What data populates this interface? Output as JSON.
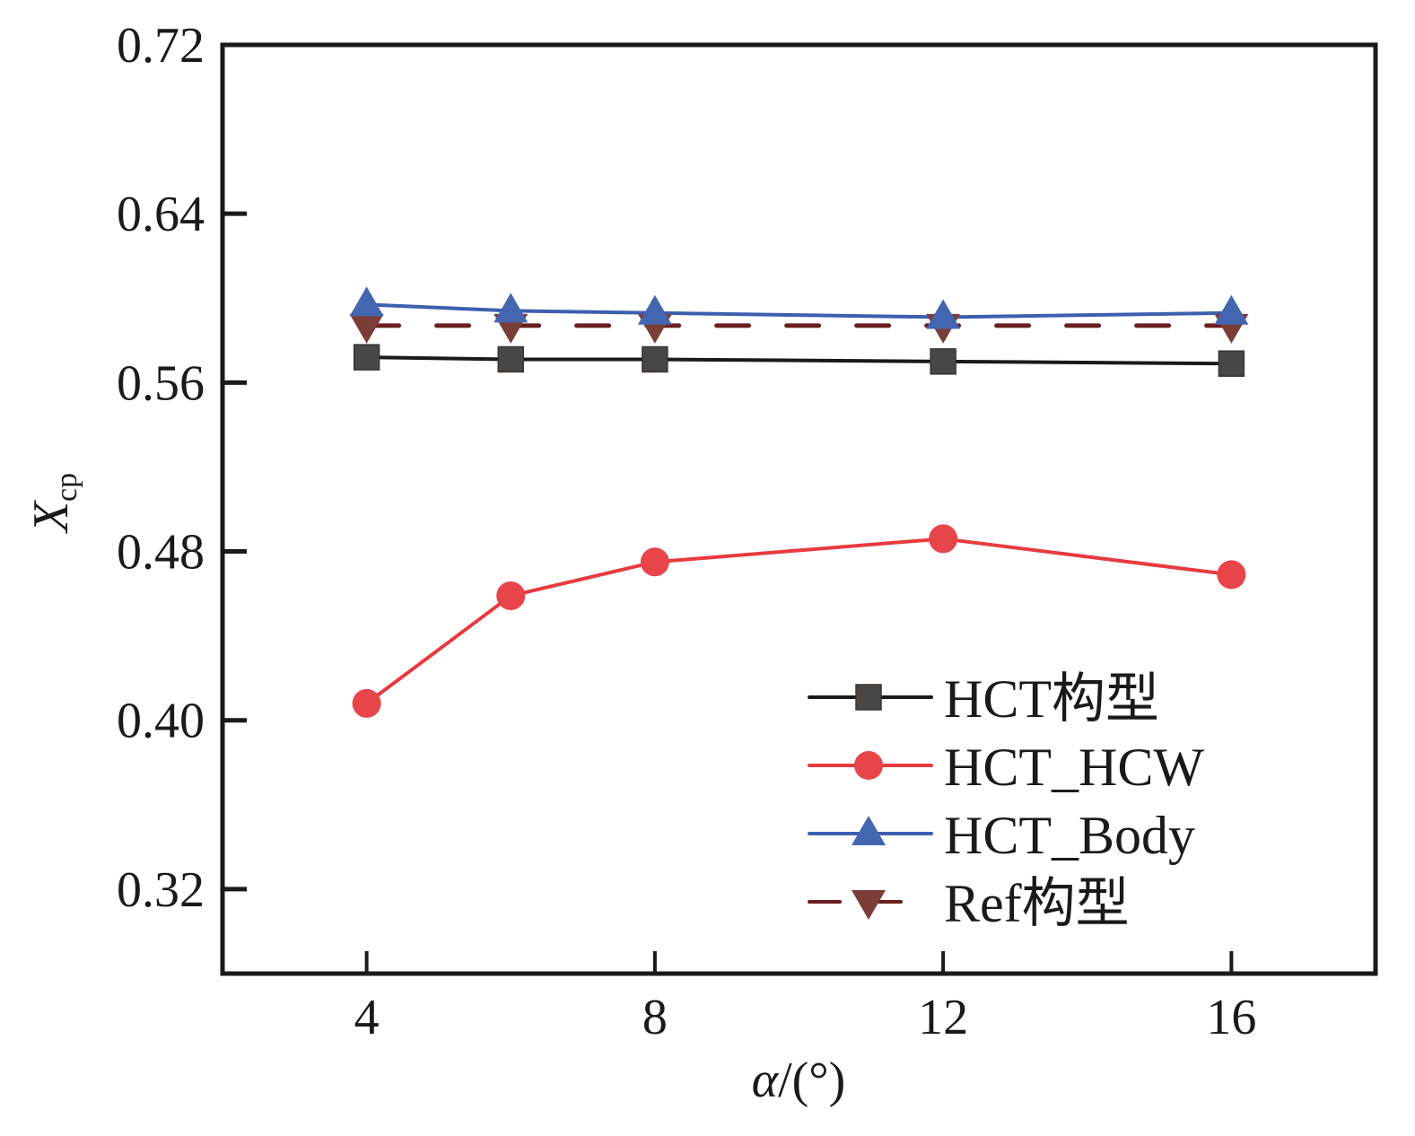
{
  "chart_data": {
    "type": "line",
    "title": "",
    "xlabel_italic": "α",
    "xlabel_rest": "/(°)",
    "xlabel": "α/(°)",
    "ylabel": "X",
    "ylabel_sub": "cp",
    "xlim": [
      2,
      18
    ],
    "ylim": [
      0.28,
      0.72
    ],
    "xticks": [
      4,
      8,
      12,
      16
    ],
    "xtick_labels": [
      "4",
      "8",
      "12",
      "16"
    ],
    "yticks": [
      0.32,
      0.4,
      0.48,
      0.56,
      0.64,
      0.72
    ],
    "ytick_labels": [
      "0.32",
      "0.40",
      "0.48",
      "0.56",
      "0.64",
      "0.72"
    ],
    "grid": false,
    "legend_position": "bottom-right",
    "x": [
      4,
      6,
      8,
      12,
      16
    ],
    "series": [
      {
        "name": "HCT构型",
        "marker": "square",
        "line": "solid",
        "color": "#1a1a1a",
        "marker_color": "#4a4644",
        "values": [
          0.572,
          0.571,
          0.571,
          0.57,
          0.569
        ]
      },
      {
        "name": "HCT_HCW",
        "marker": "circle",
        "line": "solid",
        "color": "#e83a3f",
        "marker_color": "#e8454a",
        "values": [
          0.408,
          0.459,
          0.475,
          0.486,
          0.469
        ]
      },
      {
        "name": "HCT_Body",
        "marker": "triangle-up",
        "line": "solid",
        "color": "#3d5fb0",
        "marker_color": "#4466b0",
        "values": [
          0.597,
          0.594,
          0.593,
          0.591,
          0.593
        ]
      },
      {
        "name": "Ref构型",
        "marker": "triangle-down",
        "line": "dashed",
        "color": "#6a1f1f",
        "marker_color": "#7a3d38",
        "values": [
          0.587,
          0.587,
          0.587,
          0.587,
          0.587
        ]
      }
    ]
  }
}
